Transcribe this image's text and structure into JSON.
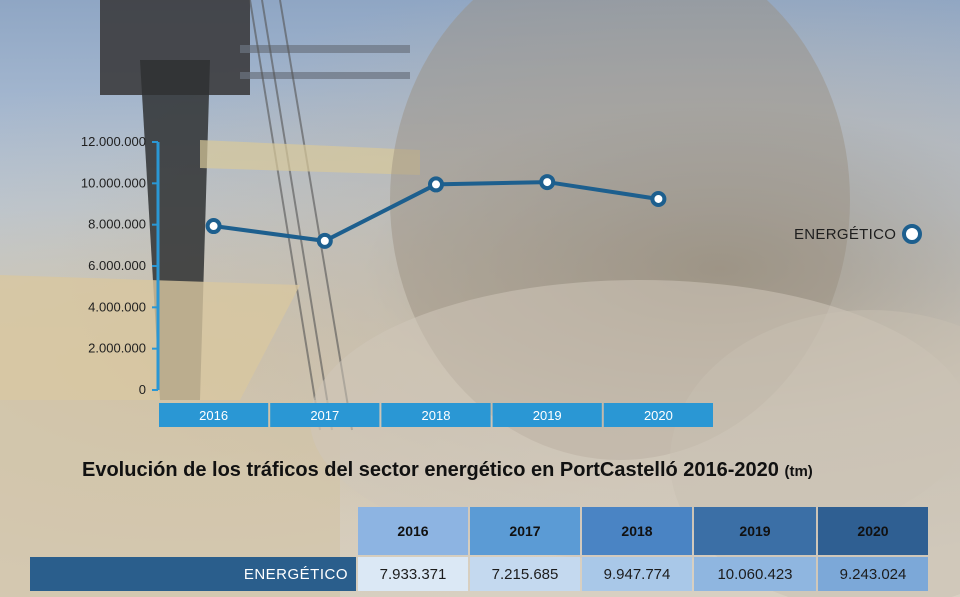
{
  "chart_data": {
    "type": "line",
    "categories": [
      "2016",
      "2017",
      "2018",
      "2019",
      "2020"
    ],
    "series": [
      {
        "name": "ENERGÉTICO",
        "values": [
          7933371,
          7215685,
          9947774,
          10060423,
          9243024
        ]
      }
    ],
    "yticks": [
      "0",
      "2.000.000",
      "4.000.000",
      "6.000.000",
      "8.000.000",
      "10.000.000",
      "12.000.000"
    ],
    "ylim": [
      0,
      12000000
    ],
    "legend_position": "right",
    "line_color": "#1d5f8e",
    "axis_band_color": "#2a97d4"
  },
  "title": {
    "main": "Evolución de los tráficos del sector energético en PortCastelló 2016-2020",
    "unit": "(tm)"
  },
  "legend": {
    "label": "ENERGÉTICO"
  },
  "table": {
    "headers": [
      "2016",
      "2017",
      "2018",
      "2019",
      "2020"
    ],
    "header_colors": [
      "#8db4e2",
      "#5b9bd5",
      "#4a84c4",
      "#3b6fa6",
      "#2f5f92"
    ],
    "row_label": "ENERGÉTICO",
    "values": [
      "7.933.371",
      "7.215.685",
      "9.947.774",
      "10.060.423",
      "9.243.024"
    ],
    "value_colors": [
      "#dbe8f5",
      "#c4d9ef",
      "#a9c8e8",
      "#8fb6e0",
      "#7ca8d8"
    ]
  }
}
